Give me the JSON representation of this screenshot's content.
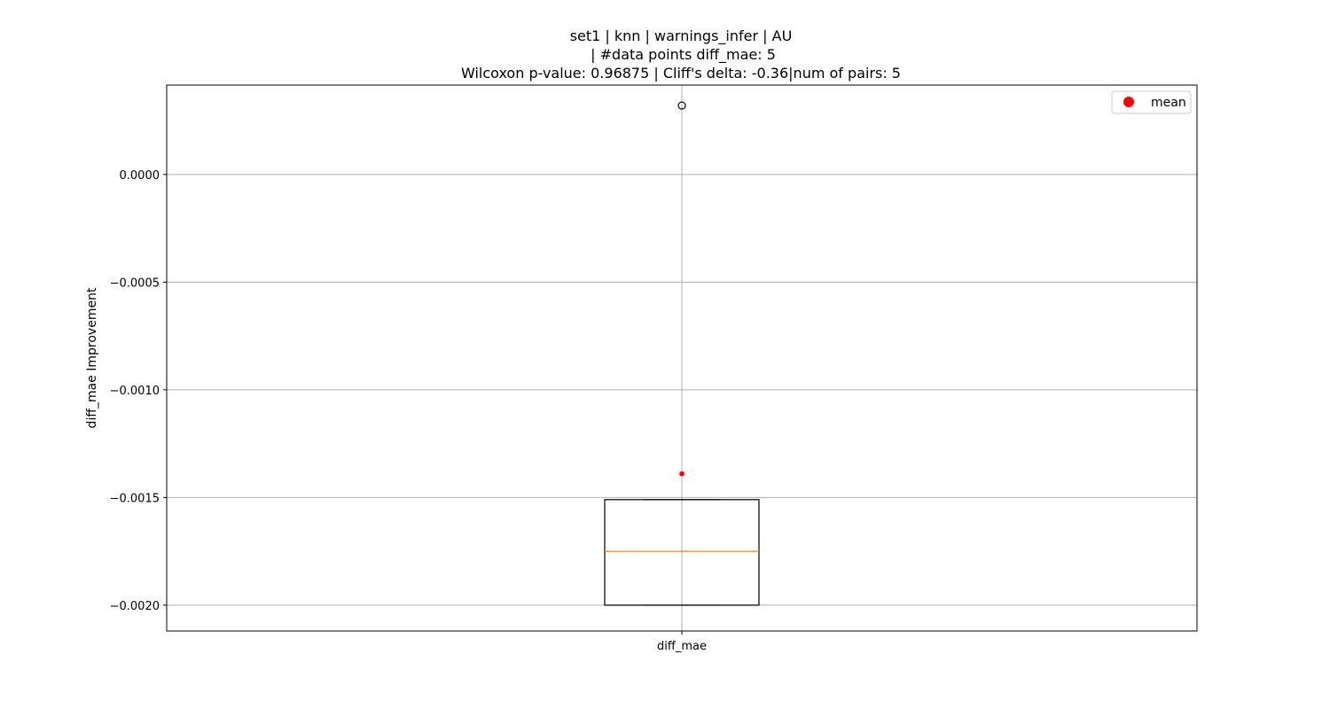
{
  "chart_data": {
    "type": "box",
    "title_lines": [
      "set1 | knn | warnings_infer | AU",
      " | #data points diff_mae: 5",
      "Wilcoxon p-value: 0.96875 | Cliff's delta: -0.36|num of pairs: 5"
    ],
    "ylabel": "diff_mae Improvement",
    "xlabel": "",
    "categories": [
      "diff_mae"
    ],
    "ylim": [
      -0.00212,
      0.000415
    ],
    "yticks": [
      0.0,
      -0.0005,
      -0.001,
      -0.0015,
      -0.002
    ],
    "ytick_labels": [
      "0.0000",
      "−0.0005",
      "−0.0010",
      "−0.0015",
      "−0.0020"
    ],
    "grid": true,
    "legend": {
      "placement": "upper right",
      "entries": [
        {
          "label": "mean",
          "color": "#ff0000"
        }
      ]
    },
    "boxes": [
      {
        "category": "diff_mae",
        "whisker_low": -0.002,
        "q1": -0.002,
        "median": -0.00175,
        "q3": -0.00151,
        "whisker_high": -0.00151,
        "outliers": [
          0.00032
        ],
        "mean": -0.00139
      }
    ],
    "colors": {
      "median": "#ff7f0e",
      "mean": "#ff0000",
      "grid": "#b0b0b0",
      "box": "#000000"
    }
  }
}
